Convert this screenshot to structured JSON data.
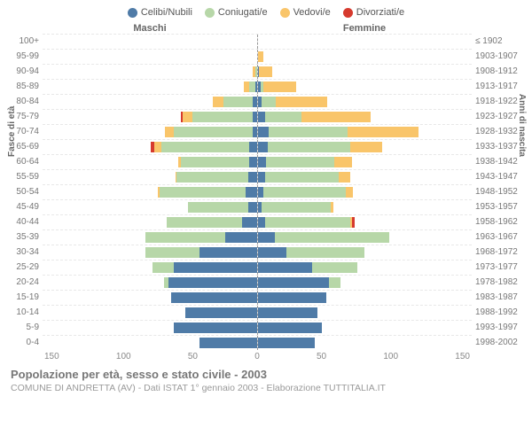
{
  "chart": {
    "type": "population-pyramid",
    "legend": [
      {
        "label": "Celibi/Nubili",
        "color": "#4f7ba7"
      },
      {
        "label": "Coniugati/e",
        "color": "#b7d7a8"
      },
      {
        "label": "Vedovi/e",
        "color": "#f9c56a"
      },
      {
        "label": "Divorziati/e",
        "color": "#d63a2e"
      }
    ],
    "headers": {
      "male": "Maschi",
      "female": "Femmine"
    },
    "axis_left_title": "Fasce di età",
    "axis_right_title": "Anni di nascita",
    "x_max": 150,
    "x_ticks": [
      "150",
      "100",
      "50",
      "0",
      "50",
      "100",
      "150"
    ],
    "grid_color": "#e8e8e8",
    "center_line_color": "#999999",
    "background_color": "#ffffff",
    "label_color": "#777777",
    "tick_fontsize": 10,
    "label_fontsize": 10,
    "legend_fontsize": 11,
    "rows": [
      {
        "age": "100+",
        "birth": "≤ 1902",
        "m": {
          "c": 0,
          "co": 0,
          "v": 0,
          "d": 0
        },
        "f": {
          "c": 0,
          "co": 0,
          "v": 0,
          "d": 0
        }
      },
      {
        "age": "95-99",
        "birth": "1903-1907",
        "m": {
          "c": 0,
          "co": 0,
          "v": 0,
          "d": 0
        },
        "f": {
          "c": 0,
          "co": 0,
          "v": 4,
          "d": 0
        }
      },
      {
        "age": "90-94",
        "birth": "1908-1912",
        "m": {
          "c": 0,
          "co": 1,
          "v": 2,
          "d": 0
        },
        "f": {
          "c": 1,
          "co": 0,
          "v": 9,
          "d": 0
        }
      },
      {
        "age": "85-89",
        "birth": "1913-1917",
        "m": {
          "c": 1,
          "co": 4,
          "v": 4,
          "d": 0
        },
        "f": {
          "c": 2,
          "co": 2,
          "v": 23,
          "d": 0
        }
      },
      {
        "age": "80-84",
        "birth": "1918-1922",
        "m": {
          "c": 3,
          "co": 20,
          "v": 8,
          "d": 0
        },
        "f": {
          "c": 3,
          "co": 10,
          "v": 36,
          "d": 0
        }
      },
      {
        "age": "75-79",
        "birth": "1923-1927",
        "m": {
          "c": 3,
          "co": 42,
          "v": 7,
          "d": 1
        },
        "f": {
          "c": 5,
          "co": 26,
          "v": 48,
          "d": 0
        }
      },
      {
        "age": "70-74",
        "birth": "1928-1932",
        "m": {
          "c": 3,
          "co": 55,
          "v": 6,
          "d": 0
        },
        "f": {
          "c": 8,
          "co": 55,
          "v": 50,
          "d": 0
        }
      },
      {
        "age": "65-69",
        "birth": "1933-1937",
        "m": {
          "c": 5,
          "co": 62,
          "v": 5,
          "d": 2
        },
        "f": {
          "c": 7,
          "co": 58,
          "v": 22,
          "d": 0
        }
      },
      {
        "age": "60-64",
        "birth": "1938-1942",
        "m": {
          "c": 5,
          "co": 48,
          "v": 2,
          "d": 0
        },
        "f": {
          "c": 6,
          "co": 48,
          "v": 12,
          "d": 0
        }
      },
      {
        "age": "55-59",
        "birth": "1943-1947",
        "m": {
          "c": 6,
          "co": 50,
          "v": 1,
          "d": 0
        },
        "f": {
          "c": 5,
          "co": 52,
          "v": 8,
          "d": 0
        }
      },
      {
        "age": "50-54",
        "birth": "1948-1952",
        "m": {
          "c": 8,
          "co": 60,
          "v": 1,
          "d": 0
        },
        "f": {
          "c": 4,
          "co": 58,
          "v": 5,
          "d": 0
        }
      },
      {
        "age": "45-49",
        "birth": "1953-1957",
        "m": {
          "c": 6,
          "co": 42,
          "v": 0,
          "d": 0
        },
        "f": {
          "c": 3,
          "co": 48,
          "v": 2,
          "d": 0
        }
      },
      {
        "age": "40-44",
        "birth": "1958-1962",
        "m": {
          "c": 10,
          "co": 53,
          "v": 0,
          "d": 0
        },
        "f": {
          "c": 5,
          "co": 60,
          "v": 1,
          "d": 2
        }
      },
      {
        "age": "35-39",
        "birth": "1963-1967",
        "m": {
          "c": 22,
          "co": 56,
          "v": 0,
          "d": 0
        },
        "f": {
          "c": 12,
          "co": 80,
          "v": 0,
          "d": 0
        }
      },
      {
        "age": "30-34",
        "birth": "1968-1972",
        "m": {
          "c": 40,
          "co": 38,
          "v": 0,
          "d": 0
        },
        "f": {
          "c": 20,
          "co": 55,
          "v": 0,
          "d": 0
        }
      },
      {
        "age": "25-29",
        "birth": "1973-1977",
        "m": {
          "c": 58,
          "co": 15,
          "v": 0,
          "d": 0
        },
        "f": {
          "c": 38,
          "co": 32,
          "v": 0,
          "d": 0
        }
      },
      {
        "age": "20-24",
        "birth": "1978-1982",
        "m": {
          "c": 62,
          "co": 3,
          "v": 0,
          "d": 0
        },
        "f": {
          "c": 50,
          "co": 8,
          "v": 0,
          "d": 0
        }
      },
      {
        "age": "15-19",
        "birth": "1983-1987",
        "m": {
          "c": 60,
          "co": 0,
          "v": 0,
          "d": 0
        },
        "f": {
          "c": 48,
          "co": 0,
          "v": 0,
          "d": 0
        }
      },
      {
        "age": "10-14",
        "birth": "1988-1992",
        "m": {
          "c": 50,
          "co": 0,
          "v": 0,
          "d": 0
        },
        "f": {
          "c": 42,
          "co": 0,
          "v": 0,
          "d": 0
        }
      },
      {
        "age": "5-9",
        "birth": "1993-1997",
        "m": {
          "c": 58,
          "co": 0,
          "v": 0,
          "d": 0
        },
        "f": {
          "c": 45,
          "co": 0,
          "v": 0,
          "d": 0
        }
      },
      {
        "age": "0-4",
        "birth": "1998-2002",
        "m": {
          "c": 40,
          "co": 0,
          "v": 0,
          "d": 0
        },
        "f": {
          "c": 40,
          "co": 0,
          "v": 0,
          "d": 0
        }
      }
    ]
  },
  "footer": {
    "title": "Popolazione per età, sesso e stato civile - 2003",
    "subtitle": "COMUNE DI ANDRETTA (AV) - Dati ISTAT 1° gennaio 2003 - Elaborazione TUTTITALIA.IT"
  }
}
